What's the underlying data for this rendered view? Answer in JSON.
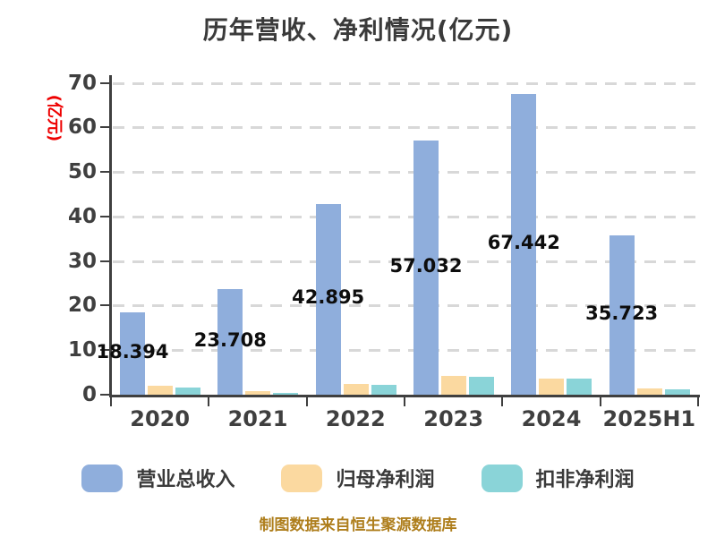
{
  "chart_data": {
    "type": "bar",
    "title": "历年营收、净利情况(亿元)",
    "ylabel": "(亿元)",
    "ylabel_color": "#EE0000",
    "categories": [
      "2020",
      "2021",
      "2022",
      "2023",
      "2024",
      "2025H1"
    ],
    "series": [
      {
        "name": "营业总收入",
        "color": "#8FAEDC",
        "values": [
          18.394,
          23.708,
          42.895,
          57.032,
          67.442,
          35.723
        ],
        "show_value_labels": true
      },
      {
        "name": "归母净利润",
        "color": "#FBD9A0",
        "values": [
          2.0,
          0.9,
          2.5,
          4.2,
          3.7,
          1.5
        ],
        "show_value_labels": false
      },
      {
        "name": "扣非净利润",
        "color": "#8AD4D8",
        "values": [
          1.6,
          0.5,
          2.2,
          4.0,
          3.6,
          1.3
        ],
        "show_value_labels": false
      }
    ],
    "ylim": [
      0,
      70
    ],
    "yticks": [
      0,
      10,
      20,
      30,
      40,
      50,
      60,
      70
    ],
    "grid": "horizontal-dashed",
    "legend_position": "bottom"
  },
  "footer": {
    "text": "制图数据来自恒生聚源数据库",
    "color": "#AE7E1C"
  }
}
